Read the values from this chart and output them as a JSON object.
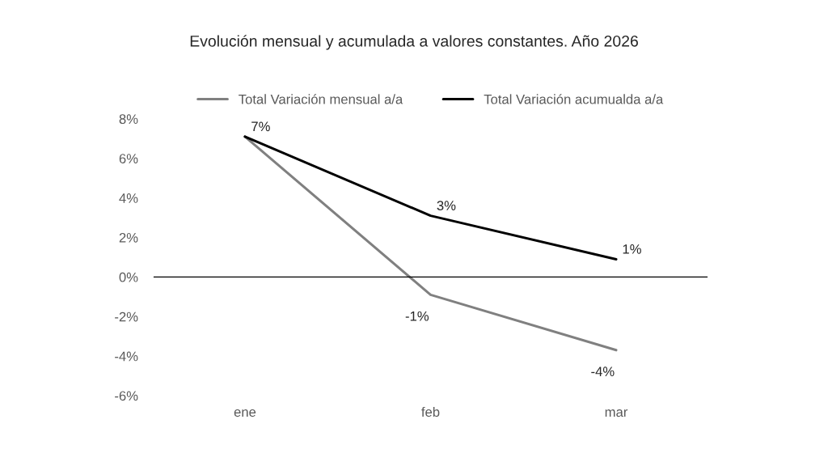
{
  "chart_data": {
    "type": "line",
    "title": "Evolución mensual y acumulada a valores constantes. Año 2026",
    "categories": [
      "ene",
      "feb",
      "mar"
    ],
    "series": [
      {
        "name": "Total Variación mensual a/a",
        "color": "#808080",
        "values": [
          7.1,
          -0.9,
          -3.7
        ],
        "value_labels": [
          null,
          "-1%",
          "-4%"
        ]
      },
      {
        "name": "Total Variación acumualda a/a",
        "color": "#000000",
        "values": [
          7.1,
          3.1,
          0.9
        ],
        "value_labels": [
          "7%",
          "3%",
          "1%"
        ]
      }
    ],
    "ylim": [
      -6,
      8
    ],
    "yticks": [
      {
        "value": -6,
        "label": "-6%"
      },
      {
        "value": -4,
        "label": "-4%"
      },
      {
        "value": -2,
        "label": "-2%"
      },
      {
        "value": 0,
        "label": "0%"
      },
      {
        "value": 2,
        "label": "2%"
      },
      {
        "value": 4,
        "label": "4%"
      },
      {
        "value": 6,
        "label": "6%"
      },
      {
        "value": 8,
        "label": "8%"
      }
    ],
    "legend": "top",
    "marker": "none",
    "line_style": "solid"
  }
}
